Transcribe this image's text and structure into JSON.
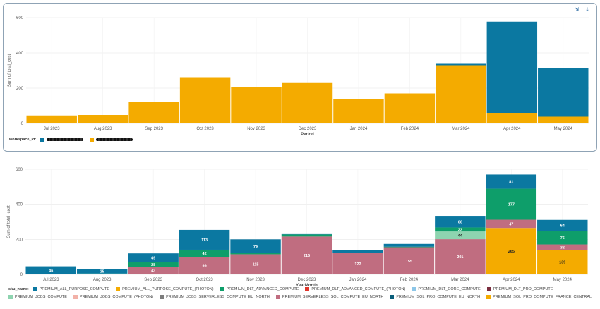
{
  "toolbar": {
    "expand_icon": "expand-icon",
    "download_icon": "download-icon",
    "expand_glyph": "⇲",
    "download_glyph": "⤓"
  },
  "chart_data": [
    {
      "type": "bar",
      "stacked": true,
      "categories": [
        "Jul 2023",
        "Aug 2023",
        "Sep 2023",
        "Oct 2023",
        "Nov 2023",
        "Dec 2023",
        "Jan 2024",
        "Feb 2024",
        "Mar 2024",
        "Apr 2024",
        "May 2024"
      ],
      "ylim": [
        0,
        600
      ],
      "yticks": [
        0,
        200,
        400,
        600
      ],
      "xlabel": "Period",
      "ylabel": "Sum of total_cost",
      "legend_title": "workspace_id:",
      "grid": true,
      "series": [
        {
          "color": "#f4ab00",
          "values": [
            45,
            48,
            120,
            262,
            205,
            233,
            138,
            170,
            330,
            60,
            38
          ]
        },
        {
          "color": "#0b78a1",
          "values": [
            0,
            0,
            0,
            0,
            0,
            0,
            0,
            0,
            8,
            517,
            278
          ]
        }
      ]
    },
    {
      "type": "bar",
      "stacked": true,
      "categories": [
        "Jul 2023",
        "Aug 2023",
        "Sep 2023",
        "Oct 2023",
        "Nov 2023",
        "Dec 2023",
        "Jan 2024",
        "Feb 2024",
        "Mar 2024",
        "Apr 2024",
        "May 2024"
      ],
      "ylim": [
        0,
        600
      ],
      "yticks": [
        0,
        200,
        400,
        600
      ],
      "xlabel": "YearMonth",
      "ylabel": "Sum of total_cost",
      "legend_title": "sku_name:",
      "grid": true,
      "series": [
        {
          "name": "PREMIUM_ALL_PURPOSE_COMPUTE_(PHOTON)",
          "color": "#f4ab00",
          "values": [
            0,
            0,
            0,
            0,
            0,
            0,
            0,
            0,
            0,
            265,
            139
          ]
        },
        {
          "name": "PREMIUM_SERVERLESS_SQL_COMPUTE_EU_NORTH",
          "color": "#c06d80",
          "values": [
            0,
            0,
            43,
            99,
            115,
            216,
            122,
            155,
            201,
            47,
            32
          ]
        },
        {
          "name": "PREMIUM_JOBS_COMPUTE",
          "color": "#8ed4b0",
          "values": [
            0,
            0,
            0,
            0,
            0,
            0,
            0,
            0,
            44,
            0,
            0
          ]
        },
        {
          "name": "PREMIUM_DLT_ADVANCED_COMPUTE",
          "color": "#0e9e6a",
          "values": [
            0,
            5,
            28,
            42,
            6,
            12,
            2,
            3,
            23,
            177,
            76
          ]
        },
        {
          "name": "PREMIUM_ALL_PURPOSE_COMPUTE",
          "color": "#0b78a1",
          "values": [
            46,
            25,
            49,
            113,
            79,
            6,
            14,
            16,
            66,
            81,
            64
          ]
        }
      ],
      "data_labels": [
        {
          "cat": 0,
          "series": 4,
          "text": "46"
        },
        {
          "cat": 1,
          "series": 4,
          "text": "25"
        },
        {
          "cat": 2,
          "series": 1,
          "text": "43"
        },
        {
          "cat": 2,
          "series": 3,
          "text": "28"
        },
        {
          "cat": 2,
          "series": 4,
          "text": "49"
        },
        {
          "cat": 3,
          "series": 1,
          "text": "99"
        },
        {
          "cat": 3,
          "series": 3,
          "text": "42"
        },
        {
          "cat": 3,
          "series": 4,
          "text": "113"
        },
        {
          "cat": 4,
          "series": 1,
          "text": "115"
        },
        {
          "cat": 4,
          "series": 4,
          "text": "79"
        },
        {
          "cat": 5,
          "series": 1,
          "text": "216"
        },
        {
          "cat": 6,
          "series": 1,
          "text": "122"
        },
        {
          "cat": 7,
          "series": 1,
          "text": "155"
        },
        {
          "cat": 8,
          "series": 1,
          "text": "201"
        },
        {
          "cat": 8,
          "series": 2,
          "text": "44"
        },
        {
          "cat": 8,
          "series": 3,
          "text": "23"
        },
        {
          "cat": 8,
          "series": 4,
          "text": "66"
        },
        {
          "cat": 9,
          "series": 0,
          "text": "265"
        },
        {
          "cat": 9,
          "series": 1,
          "text": "47"
        },
        {
          "cat": 9,
          "series": 3,
          "text": "177"
        },
        {
          "cat": 9,
          "series": 4,
          "text": "81"
        },
        {
          "cat": 10,
          "series": 0,
          "text": "139"
        },
        {
          "cat": 10,
          "series": 1,
          "text": "32"
        },
        {
          "cat": 10,
          "series": 3,
          "text": "76"
        },
        {
          "cat": 10,
          "series": 4,
          "text": "64"
        }
      ],
      "legend": [
        {
          "name": "PREMIUM_ALL_PURPOSE_COMPUTE",
          "color": "#0b78a1"
        },
        {
          "name": "PREMIUM_ALL_PURPOSE_COMPUTE_(PHOTON)",
          "color": "#f4ab00"
        },
        {
          "name": "PREMIUM_DLT_ADVANCED_COMPUTE",
          "color": "#0e9e6a"
        },
        {
          "name": "PREMIUM_DLT_ADVANCED_COMPUTE_(PHOTON)",
          "color": "#e0352b"
        },
        {
          "name": "PREMIUM_DLT_CORE_COMPUTE",
          "color": "#8cc6e8"
        },
        {
          "name": "PREMIUM_DLT_PRO_COMPUTE",
          "color": "#7b2d3f"
        },
        {
          "name": "PREMIUM_JOBS_COMPUTE",
          "color": "#8ed4b0"
        },
        {
          "name": "PREMIUM_JOBS_COMPUTE_(PHOTON)",
          "color": "#f2b1a8"
        },
        {
          "name": "PREMIUM_JOBS_SERVERLESS_COMPUTE_EU_NORTH",
          "color": "#7d7d7d"
        },
        {
          "name": "PREMIUM_SERVERLESS_SQL_COMPUTE_EU_NORTH",
          "color": "#c06d80"
        },
        {
          "name": "PREMIUM_SQL_PRO_COMPUTE_EU_NORTH",
          "color": "#0a5e7a"
        },
        {
          "name": "PREMIUM_SQL_PRO_COMPUTE_FRANCE_CENTRAL",
          "color": "#f4ab00"
        }
      ]
    }
  ]
}
